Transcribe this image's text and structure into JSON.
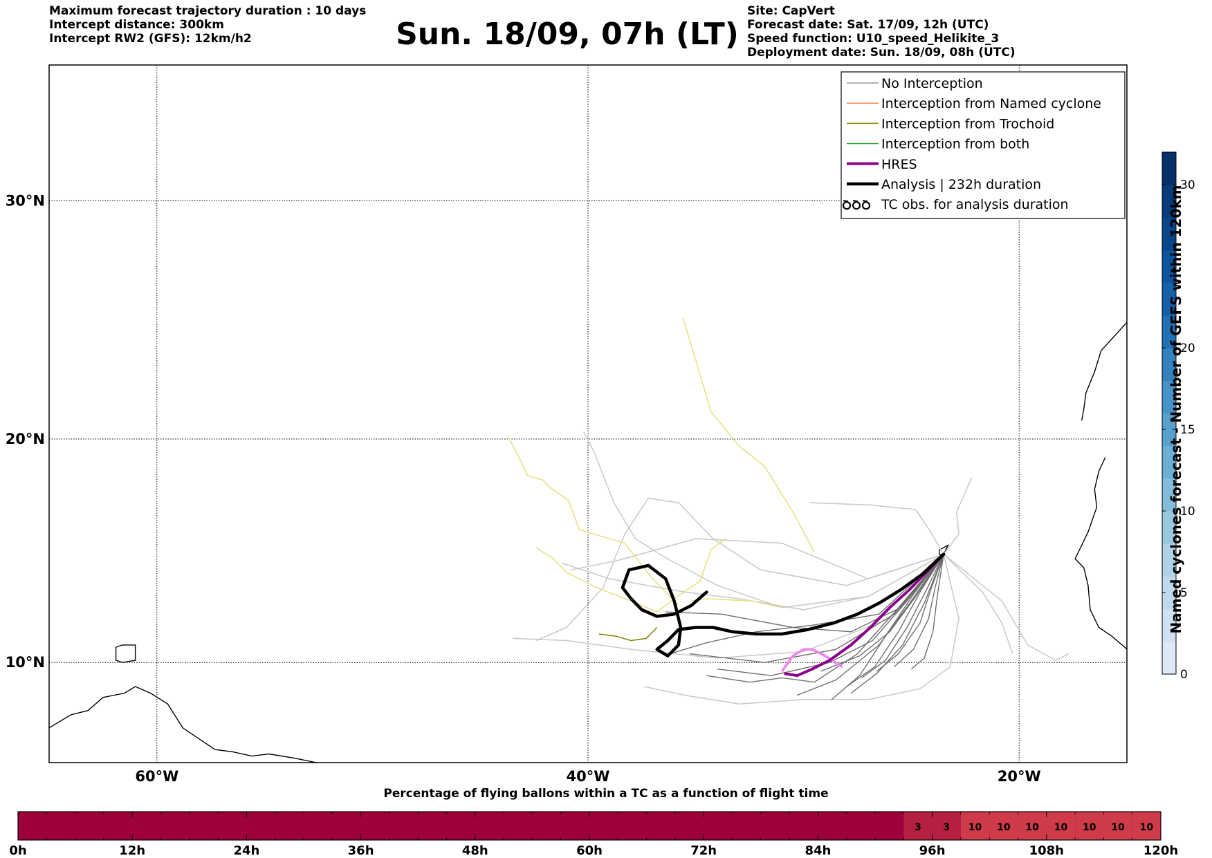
{
  "header": {
    "left_lines": [
      "Maximum forecast trajectory duration : 10 days",
      "Intercept distance: 300km",
      "Intercept RW2 (GFS):  12km/h2"
    ],
    "title": "Sun. 18/09, 07h (LT)",
    "right_lines": [
      "Site: CapVert",
      "Forecast date: Sat. 17/09, 12h (UTC)",
      "Speed function: U10_speed_Helikite_3",
      "Deployment date: Sun. 18/09, 08h (UTC)"
    ]
  },
  "map": {
    "lat_labels": [
      "30°N",
      "20°N",
      "10°N"
    ],
    "lon_labels": [
      "60°W",
      "40°W",
      "20°W"
    ],
    "lat_values": [
      30,
      20,
      10
    ],
    "lon_values": [
      -60,
      -40,
      -20
    ],
    "extent": {
      "lon_min": -65,
      "lon_max": -15,
      "lat_min": 5.4,
      "lat_max": 35.3
    },
    "deployment_site": {
      "lon": -23.5,
      "lat": 14.9
    }
  },
  "legend": {
    "items": [
      {
        "label": "No Interception",
        "color": "#999999",
        "style": "thin"
      },
      {
        "label": "Interception from Named cyclone",
        "color": "#ff7f50",
        "style": "thin"
      },
      {
        "label": "Interception from Trochoid",
        "color": "#808000",
        "style": "thin"
      },
      {
        "label": "Interception from both",
        "color": "#2ca02c",
        "style": "thin"
      },
      {
        "label": "HRES",
        "color": "#8b008b",
        "style": "thick"
      },
      {
        "label": "Analysis | 232h duration",
        "color": "#000000",
        "style": "thicker"
      },
      {
        "label": "TC obs. for analysis duration",
        "color": "#000000",
        "style": "tc-symbols"
      }
    ]
  },
  "colorbar": {
    "title": "Named cyclones forecast - Number of GEFS within 120km",
    "min": 0,
    "max": 32,
    "ticks": [
      0,
      5,
      10,
      15,
      20,
      30
    ],
    "tick_labels": [
      "0",
      "5",
      "10",
      "15",
      "20",
      "30"
    ],
    "colors": [
      "#dde9f7",
      "#d0e1f2",
      "#c1d9ed",
      "#b0d2e8",
      "#9ac8e0",
      "#84bcdb",
      "#6baed6",
      "#58a1cf",
      "#4592c6",
      "#3282be",
      "#2171b5",
      "#1561a9",
      "#0b559f",
      "#08468b",
      "#083b79",
      "#08306b"
    ]
  },
  "timeline": {
    "title": "Percentage of flying ballons within a TC as a function of flight time",
    "tick_labels": [
      "0h",
      "12h",
      "24h",
      "36h",
      "48h",
      "60h",
      "72h",
      "84h",
      "96h",
      "108h",
      "120h"
    ],
    "tick_hours": [
      0,
      12,
      24,
      36,
      48,
      60,
      72,
      84,
      96,
      108,
      120
    ],
    "max_hours": 120,
    "base_color": "#9e003a",
    "segments": [
      {
        "start_h": 93,
        "end_h": 96,
        "label": "3",
        "color": "#b51f42"
      },
      {
        "start_h": 96,
        "end_h": 99,
        "label": "3",
        "color": "#b51f42"
      },
      {
        "start_h": 99,
        "end_h": 102,
        "label": "10",
        "color": "#cf3b4a"
      },
      {
        "start_h": 102,
        "end_h": 105,
        "label": "10",
        "color": "#cf3b4a"
      },
      {
        "start_h": 105,
        "end_h": 108,
        "label": "10",
        "color": "#cf3b4a"
      },
      {
        "start_h": 108,
        "end_h": 111,
        "label": "10",
        "color": "#cf3b4a"
      },
      {
        "start_h": 111,
        "end_h": 114,
        "label": "10",
        "color": "#cf3b4a"
      },
      {
        "start_h": 114,
        "end_h": 117,
        "label": "10",
        "color": "#cf3b4a"
      },
      {
        "start_h": 117,
        "end_h": 120,
        "label": "10",
        "color": "#cf3b4a"
      }
    ]
  },
  "trajectories": {
    "analysis": [
      [
        -23.5,
        14.9
      ],
      [
        -24.5,
        14.0
      ],
      [
        -25.5,
        13.3
      ],
      [
        -26.5,
        12.7
      ],
      [
        -27.5,
        12.2
      ],
      [
        -28.6,
        11.8
      ],
      [
        -29.8,
        11.5
      ],
      [
        -31,
        11.3
      ],
      [
        -32.2,
        11.3
      ],
      [
        -33.3,
        11.4
      ],
      [
        -34.2,
        11.6
      ],
      [
        -35.0,
        11.6
      ],
      [
        -35.8,
        11.5
      ],
      [
        -36.3,
        11.0
      ],
      [
        -36.8,
        10.6
      ],
      [
        -36.3,
        10.3
      ],
      [
        -35.8,
        10.8
      ],
      [
        -35.7,
        11.6
      ],
      [
        -36.0,
        12.8
      ],
      [
        -36.4,
        13.8
      ],
      [
        -37.2,
        14.4
      ],
      [
        -38.1,
        14.2
      ],
      [
        -38.4,
        13.4
      ],
      [
        -38.0,
        12.9
      ],
      [
        -37.5,
        12.4
      ],
      [
        -36.8,
        12.1
      ],
      [
        -36.0,
        12.2
      ],
      [
        -35.2,
        12.6
      ],
      [
        -34.5,
        13.2
      ]
    ],
    "hres": [
      [
        -23.5,
        14.9
      ],
      [
        -24.3,
        14.1
      ],
      [
        -25.1,
        13.3
      ],
      [
        -26.0,
        12.5
      ],
      [
        -26.9,
        11.6
      ],
      [
        -27.8,
        10.8
      ],
      [
        -28.8,
        10.1
      ],
      [
        -29.6,
        9.7
      ],
      [
        -30.3,
        9.4
      ],
      [
        -30.9,
        9.5
      ]
    ],
    "hres_light": [
      [
        -28.2,
        9.8
      ],
      [
        -29.0,
        10.3
      ],
      [
        -29.6,
        10.6
      ],
      [
        -30.0,
        10.6
      ],
      [
        -30.5,
        10.3
      ],
      [
        -31.0,
        9.6
      ]
    ],
    "trochoid": [
      [
        -36.8,
        11.6
      ],
      [
        -37.3,
        11.1
      ],
      [
        -38.0,
        11.0
      ],
      [
        -38.7,
        11.2
      ],
      [
        -39.5,
        11.3
      ]
    ],
    "light_gray": [
      [
        [
          -23.5,
          14.9
        ],
        [
          -27,
          13
        ],
        [
          -31,
          12.5
        ],
        [
          -34,
          13.5
        ],
        [
          -36.5,
          14.8
        ],
        [
          -37.8,
          15.6
        ],
        [
          -38.8,
          17.2
        ],
        [
          -39.7,
          19.4
        ],
        [
          -40.2,
          20.3
        ]
      ],
      [
        [
          -23.5,
          14.9
        ],
        [
          -28,
          13.5
        ],
        [
          -32,
          14.2
        ],
        [
          -34.2,
          15.6
        ],
        [
          -35.8,
          17.2
        ],
        [
          -37.2,
          17.4
        ],
        [
          -38.3,
          15.8
        ],
        [
          -39.3,
          13.4
        ],
        [
          -41,
          11.6
        ],
        [
          -42.4,
          11.0
        ]
      ],
      [
        [
          -23.5,
          14.9
        ],
        [
          -26,
          12
        ],
        [
          -30,
          10.5
        ],
        [
          -34,
          10.2
        ],
        [
          -38,
          10.6
        ],
        [
          -41,
          11.0
        ],
        [
          -43.5,
          11.1
        ]
      ],
      [
        [
          -23.5,
          14.9
        ],
        [
          -27,
          13.8
        ],
        [
          -31,
          15.4
        ],
        [
          -35,
          15.6
        ],
        [
          -38.7,
          14.6
        ],
        [
          -40.8,
          14.2
        ]
      ],
      [
        [
          -23.5,
          14.9
        ],
        [
          -22.8,
          12
        ],
        [
          -23.2,
          9.8
        ],
        [
          -24.6,
          8.8
        ],
        [
          -27,
          8.3
        ],
        [
          -30,
          8.3
        ],
        [
          -33,
          8.1
        ],
        [
          -35.5,
          8.5
        ],
        [
          -37.4,
          8.9
        ]
      ],
      [
        [
          -23.5,
          14.9
        ],
        [
          -22.8,
          15.8
        ],
        [
          -22.9,
          16.8
        ],
        [
          -22.2,
          18.3
        ]
      ],
      [
        [
          -23.5,
          14.9
        ],
        [
          -21.7,
          13.2
        ],
        [
          -20.8,
          11.8
        ],
        [
          -20.3,
          10.4
        ]
      ],
      [
        [
          -23.5,
          14.9
        ],
        [
          -24.1,
          15.9
        ],
        [
          -24.8,
          16.9
        ],
        [
          -26.9,
          17.1
        ],
        [
          -29.7,
          17.2
        ]
      ],
      [
        [
          -23.5,
          14.9
        ],
        [
          -20.8,
          12.8
        ],
        [
          -19.6,
          10.8
        ],
        [
          -18.3,
          10.1
        ],
        [
          -17.7,
          10.4
        ]
      ],
      [
        [
          -23.5,
          14.9
        ],
        [
          -27,
          13
        ],
        [
          -30,
          12.4
        ],
        [
          -33,
          12.9
        ],
        [
          -35.5,
          13.2
        ],
        [
          -39,
          13.8
        ],
        [
          -41.2,
          14.5
        ]
      ]
    ],
    "dark_gray": [
      [
        [
          -23.5,
          14.9
        ],
        [
          -25.5,
          12.6
        ],
        [
          -27.5,
          10.4
        ],
        [
          -29.5,
          9.1
        ],
        [
          -31,
          9.3
        ],
        [
          -32.5,
          9.1
        ],
        [
          -34.5,
          9.4
        ]
      ],
      [
        [
          -23.5,
          14.9
        ],
        [
          -25,
          12.8
        ],
        [
          -26.5,
          10.8
        ],
        [
          -28.5,
          9.2
        ],
        [
          -30.3,
          8.5
        ]
      ],
      [
        [
          -23.5,
          14.9
        ],
        [
          -24.9,
          13.1
        ],
        [
          -26.2,
          11.2
        ],
        [
          -27.4,
          9.4
        ],
        [
          -28.7,
          8.3
        ]
      ],
      [
        [
          -23.5,
          14.9
        ],
        [
          -24.6,
          13.2
        ],
        [
          -25.6,
          11.4
        ],
        [
          -26.7,
          9.8
        ],
        [
          -28.0,
          8.9
        ]
      ],
      [
        [
          -23.5,
          14.9
        ],
        [
          -24.3,
          13.3
        ],
        [
          -25.2,
          11.6
        ],
        [
          -26.2,
          10.1
        ],
        [
          -27.3,
          9.3
        ]
      ],
      [
        [
          -23.5,
          14.9
        ],
        [
          -24.1,
          13.3
        ],
        [
          -24.6,
          11.8
        ],
        [
          -25.6,
          10.4
        ],
        [
          -26.6,
          9.6
        ]
      ],
      [
        [
          -23.5,
          14.9
        ],
        [
          -23.9,
          13.4
        ],
        [
          -24.2,
          12.0
        ],
        [
          -24.9,
          10.6
        ],
        [
          -25.8,
          9.8
        ]
      ],
      [
        [
          -23.5,
          14.9
        ],
        [
          -25.5,
          12.5
        ],
        [
          -27.8,
          11.4
        ],
        [
          -30.5,
          11.6
        ],
        [
          -33.8,
          12.2
        ],
        [
          -36.4,
          12.3
        ]
      ],
      [
        [
          -23.5,
          14.9
        ],
        [
          -25.8,
          12.2
        ],
        [
          -28.5,
          10.6
        ],
        [
          -31.8,
          10.0
        ],
        [
          -35.3,
          10.4
        ]
      ],
      [
        [
          -23.5,
          14.9
        ],
        [
          -25.2,
          12.8
        ],
        [
          -26.8,
          11.0
        ],
        [
          -28.8,
          10.0
        ],
        [
          -31.5,
          9.4
        ],
        [
          -34.0,
          9.7
        ]
      ],
      [
        [
          -23.5,
          14.9
        ],
        [
          -24.8,
          13.0
        ],
        [
          -26.0,
          11.4
        ],
        [
          -27.4,
          10.3
        ],
        [
          -29.2,
          9.6
        ]
      ],
      [
        [
          -23.5,
          14.9
        ],
        [
          -23.8,
          13.0
        ],
        [
          -24.0,
          11.4
        ],
        [
          -24.4,
          10.2
        ],
        [
          -25.0,
          9.7
        ]
      ],
      [
        [
          -23.5,
          14.9
        ],
        [
          -26.5,
          12.2
        ],
        [
          -29.6,
          11.7
        ],
        [
          -32.2,
          11.4
        ],
        [
          -34.5,
          10.9
        ],
        [
          -36.2,
          10.4
        ]
      ],
      [
        [
          -23.5,
          14.9
        ],
        [
          -24.4,
          12.7
        ],
        [
          -25.4,
          10.8
        ],
        [
          -26.6,
          9.5
        ],
        [
          -27.8,
          8.6
        ]
      ]
    ],
    "yellow": [
      [
        [
          -29.5,
          15.0
        ],
        [
          -30.5,
          16.8
        ],
        [
          -31.8,
          18.8
        ],
        [
          -33.0,
          19.7
        ],
        [
          -34.3,
          21.2
        ],
        [
          -35.0,
          23.4
        ],
        [
          -35.6,
          25.2
        ]
      ],
      [
        [
          -35.8,
          12.6
        ],
        [
          -37.1,
          13.9
        ],
        [
          -38.3,
          15.4
        ],
        [
          -40.4,
          16.0
        ],
        [
          -40.9,
          17.3
        ],
        [
          -41.8,
          17.9
        ],
        [
          -42.1,
          18.2
        ],
        [
          -42.8,
          18.4
        ],
        [
          -43.2,
          19.2
        ],
        [
          -43.7,
          20.1
        ]
      ],
      [
        [
          -36.8,
          12.3
        ],
        [
          -38.0,
          12.8
        ],
        [
          -39.6,
          13.4
        ],
        [
          -41.0,
          14.1
        ],
        [
          -41.6,
          14.7
        ],
        [
          -42.4,
          15.2
        ]
      ],
      [
        [
          -31.0,
          12.5
        ],
        [
          -32.4,
          12.8
        ],
        [
          -34.5,
          12.9
        ],
        [
          -35.2,
          12.8
        ]
      ],
      [
        [
          -33.6,
          15.6
        ],
        [
          -34.3,
          15.1
        ],
        [
          -34.8,
          13.7
        ],
        [
          -36.0,
          12.9
        ],
        [
          -36.8,
          12.3
        ]
      ]
    ]
  },
  "land": {
    "south_america": [
      [
        -65,
        7.0
      ],
      [
        -64,
        7.6
      ],
      [
        -63.2,
        7.8
      ],
      [
        -62.5,
        8.4
      ],
      [
        -61.5,
        8.6
      ],
      [
        -61.0,
        8.9
      ],
      [
        -60.3,
        8.6
      ],
      [
        -59.5,
        8.1
      ],
      [
        -58.8,
        7.0
      ],
      [
        -58.2,
        6.6
      ],
      [
        -57.3,
        6.0
      ],
      [
        -56.5,
        5.9
      ],
      [
        -55.6,
        5.7
      ],
      [
        -54.8,
        5.8
      ],
      [
        -53.6,
        5.6
      ],
      [
        -52.6,
        5.4
      ]
    ],
    "trinidad": [
      [
        -61.9,
        10.7
      ],
      [
        -61.6,
        10.8
      ],
      [
        -61.0,
        10.8
      ],
      [
        -61.0,
        10.1
      ],
      [
        -61.6,
        10.0
      ],
      [
        -61.9,
        10.1
      ]
    ],
    "cape_verde_santiago": [
      [
        -23.3,
        15.3
      ],
      [
        -23.7,
        15.1
      ],
      [
        -23.7,
        14.9
      ],
      [
        -23.5,
        14.9
      ],
      [
        -23.4,
        15.1
      ]
    ],
    "sahara_coast": [
      [
        -17.1,
        20.8
      ],
      [
        -17.0,
        21.3
      ],
      [
        -16.9,
        22.0
      ],
      [
        -16.5,
        22.9
      ],
      [
        -16.2,
        23.8
      ],
      [
        -15.5,
        24.5
      ],
      [
        -15.0,
        25.0
      ]
    ],
    "senegal_coast": [
      [
        -16.0,
        19.2
      ],
      [
        -16.3,
        18.6
      ],
      [
        -16.5,
        17.8
      ],
      [
        -16.4,
        17.0
      ],
      [
        -16.8,
        15.9
      ],
      [
        -17.4,
        14.7
      ],
      [
        -17.0,
        14.3
      ],
      [
        -16.8,
        13.5
      ],
      [
        -16.7,
        12.4
      ],
      [
        -16.3,
        11.6
      ],
      [
        -15.7,
        11.2
      ],
      [
        -15.1,
        10.7
      ],
      [
        -15.0,
        10.6
      ]
    ]
  }
}
